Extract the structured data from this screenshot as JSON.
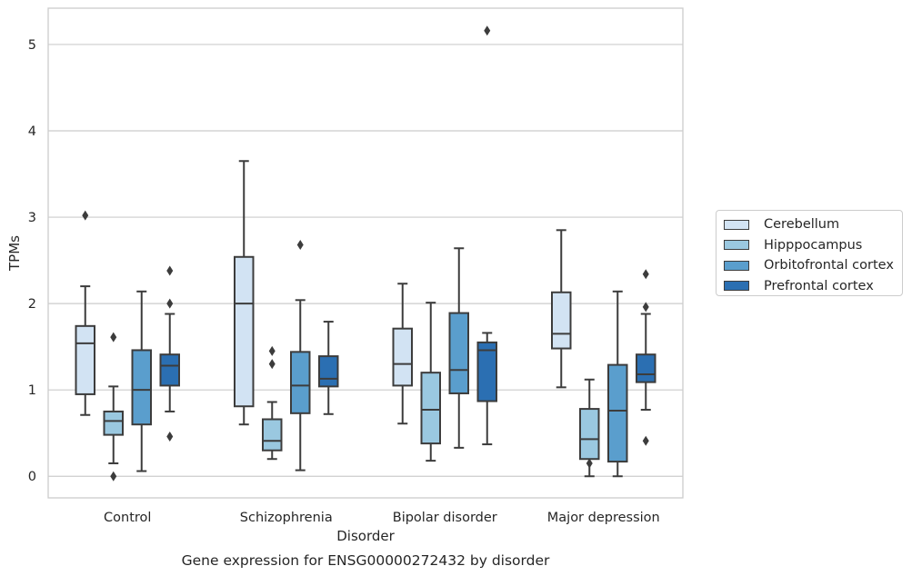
{
  "chart_data": {
    "type": "box",
    "title": "",
    "caption": "Gene expression for ENSG00000272432 by disorder",
    "xlabel": "Disorder",
    "ylabel": "TPMs",
    "ylim": [
      -0.25,
      5.42
    ],
    "yticks": [
      0,
      1,
      2,
      3,
      4,
      5
    ],
    "grid": true,
    "legend_position": "right",
    "categories": [
      "Control",
      "Schizophrenia",
      "Bipolar disorder",
      "Major depression"
    ],
    "series": [
      {
        "name": "Cerebellum",
        "color": "#d2e3f3",
        "boxes": [
          {
            "whislo": 0.71,
            "q1": 0.95,
            "med": 1.54,
            "q3": 1.74,
            "whishi": 2.2,
            "fliers": [
              3.02
            ]
          },
          {
            "whislo": 0.6,
            "q1": 0.81,
            "med": 2.0,
            "q3": 2.54,
            "whishi": 3.65,
            "fliers": []
          },
          {
            "whislo": 0.61,
            "q1": 1.05,
            "med": 1.3,
            "q3": 1.71,
            "whishi": 2.23,
            "fliers": []
          },
          {
            "whislo": 1.03,
            "q1": 1.48,
            "med": 1.65,
            "q3": 2.13,
            "whishi": 2.85,
            "fliers": []
          }
        ]
      },
      {
        "name": "Hipppocampus",
        "color": "#9ac8e0",
        "boxes": [
          {
            "whislo": 0.15,
            "q1": 0.48,
            "med": 0.64,
            "q3": 0.75,
            "whishi": 1.04,
            "fliers": [
              1.61,
              0.0
            ]
          },
          {
            "whislo": 0.2,
            "q1": 0.3,
            "med": 0.41,
            "q3": 0.66,
            "whishi": 0.86,
            "fliers": [
              1.45,
              1.3
            ]
          },
          {
            "whislo": 0.18,
            "q1": 0.38,
            "med": 0.77,
            "q3": 1.2,
            "whishi": 2.01,
            "fliers": []
          },
          {
            "whislo": 0.0,
            "q1": 0.2,
            "med": 0.43,
            "q3": 0.78,
            "whishi": 1.12,
            "fliers": [
              0.15
            ]
          }
        ]
      },
      {
        "name": "Orbitofrontal cortex",
        "color": "#5a9ecd",
        "boxes": [
          {
            "whislo": 0.06,
            "q1": 0.6,
            "med": 1.0,
            "q3": 1.46,
            "whishi": 2.14,
            "fliers": []
          },
          {
            "whislo": 0.07,
            "q1": 0.73,
            "med": 1.05,
            "q3": 1.44,
            "whishi": 2.04,
            "fliers": [
              2.68
            ]
          },
          {
            "whislo": 0.33,
            "q1": 0.96,
            "med": 1.23,
            "q3": 1.89,
            "whishi": 2.64,
            "fliers": []
          },
          {
            "whislo": 0.0,
            "q1": 0.17,
            "med": 0.76,
            "q3": 1.29,
            "whishi": 2.14,
            "fliers": []
          }
        ]
      },
      {
        "name": "Prefrontal cortex",
        "color": "#2b6fb2",
        "boxes": [
          {
            "whislo": 0.75,
            "q1": 1.05,
            "med": 1.28,
            "q3": 1.41,
            "whishi": 1.88,
            "fliers": [
              2.38,
              2.0,
              0.46
            ]
          },
          {
            "whislo": 0.72,
            "q1": 1.04,
            "med": 1.13,
            "q3": 1.39,
            "whishi": 1.79,
            "fliers": []
          },
          {
            "whislo": 0.37,
            "q1": 0.87,
            "med": 1.46,
            "q3": 1.55,
            "whishi": 1.66,
            "fliers": [
              5.16
            ]
          },
          {
            "whislo": 0.77,
            "q1": 1.09,
            "med": 1.18,
            "q3": 1.41,
            "whishi": 1.88,
            "fliers": [
              2.34,
              1.96,
              0.41
            ]
          }
        ]
      }
    ]
  }
}
